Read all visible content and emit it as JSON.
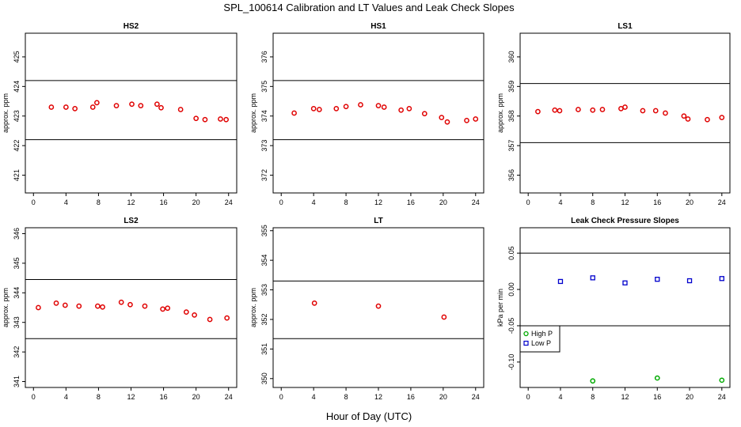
{
  "figure": {
    "title": "SPL_100614  Calibration and LT Values and Leak Check Slopes",
    "xlabel": "Hour of Day (UTC)"
  },
  "chart_data": [
    {
      "type": "scatter",
      "title": "HS2",
      "ylabel": "approx. ppm",
      "xlim": [
        -1,
        25
      ],
      "ylim": [
        420.4,
        425.8
      ],
      "xticks": [
        0,
        4,
        8,
        12,
        16,
        20,
        24
      ],
      "yticks": [
        421,
        422,
        423,
        424,
        425
      ],
      "hlines": [
        424.2,
        422.2
      ],
      "series": [
        {
          "color": "#e00000",
          "marker": "circle",
          "x": [
            2.2,
            4.0,
            5.1,
            7.3,
            7.8,
            10.2,
            12.1,
            13.2,
            15.2,
            15.7,
            18.1,
            20.0,
            21.1,
            23.0,
            23.7
          ],
          "y": [
            423.3,
            423.3,
            423.25,
            423.3,
            423.45,
            423.35,
            423.4,
            423.35,
            423.4,
            423.28,
            423.22,
            422.92,
            422.88,
            422.9,
            422.88
          ]
        }
      ]
    },
    {
      "type": "scatter",
      "title": "HS1",
      "ylabel": "approx. ppm",
      "xlim": [
        -1,
        25
      ],
      "ylim": [
        371.4,
        376.8
      ],
      "xticks": [
        0,
        4,
        8,
        12,
        16,
        20,
        24
      ],
      "yticks": [
        372,
        373,
        374,
        375,
        376
      ],
      "hlines": [
        375.2,
        373.2
      ],
      "series": [
        {
          "color": "#e00000",
          "marker": "circle",
          "x": [
            1.6,
            4.0,
            4.7,
            6.8,
            8.0,
            9.8,
            12.0,
            12.7,
            14.8,
            15.8,
            17.7,
            19.8,
            20.5,
            22.9,
            24.0
          ],
          "y": [
            374.1,
            374.25,
            374.22,
            374.25,
            374.32,
            374.38,
            374.35,
            374.3,
            374.2,
            374.25,
            374.08,
            373.95,
            373.8,
            373.85,
            373.9
          ]
        }
      ]
    },
    {
      "type": "scatter",
      "title": "LS1",
      "ylabel": "approx. ppm",
      "xlim": [
        -1,
        25
      ],
      "ylim": [
        355.4,
        360.8
      ],
      "xticks": [
        0,
        4,
        8,
        12,
        16,
        20,
        24
      ],
      "yticks": [
        356,
        357,
        358,
        359,
        360
      ],
      "hlines": [
        359.1,
        357.1
      ],
      "series": [
        {
          "color": "#e00000",
          "marker": "circle",
          "x": [
            1.2,
            3.3,
            3.9,
            6.2,
            8.0,
            9.2,
            11.5,
            12.0,
            14.2,
            15.8,
            17.0,
            19.3,
            19.8,
            22.2,
            24.0
          ],
          "y": [
            358.15,
            358.2,
            358.18,
            358.22,
            358.2,
            358.22,
            358.25,
            358.3,
            358.18,
            358.18,
            358.1,
            358.0,
            357.9,
            357.88,
            357.95
          ]
        }
      ]
    },
    {
      "type": "scatter",
      "title": "LS2",
      "ylabel": "approx. ppm",
      "xlim": [
        -1,
        25
      ],
      "ylim": [
        340.8,
        346.2
      ],
      "xticks": [
        0,
        4,
        8,
        12,
        16,
        20,
        24
      ],
      "yticks": [
        341,
        342,
        343,
        344,
        345,
        346
      ],
      "hlines": [
        344.45,
        342.45
      ],
      "series": [
        {
          "color": "#e00000",
          "marker": "circle",
          "x": [
            0.6,
            2.8,
            3.9,
            5.6,
            7.9,
            8.5,
            10.8,
            11.9,
            13.7,
            15.9,
            16.5,
            18.8,
            19.8,
            21.7,
            23.8
          ],
          "y": [
            343.5,
            343.65,
            343.58,
            343.55,
            343.55,
            343.52,
            343.68,
            343.6,
            343.55,
            343.45,
            343.48,
            343.35,
            343.25,
            343.1,
            343.15
          ]
        }
      ]
    },
    {
      "type": "scatter",
      "title": "LT",
      "ylabel": "approx. ppm",
      "xlim": [
        -1,
        25
      ],
      "ylim": [
        349.7,
        355.1
      ],
      "xticks": [
        0,
        4,
        8,
        12,
        16,
        20,
        24
      ],
      "yticks": [
        350,
        351,
        352,
        353,
        354,
        355
      ],
      "hlines": [
        353.3,
        351.35
      ],
      "series": [
        {
          "color": "#e00000",
          "marker": "circle",
          "x": [
            4.1,
            12.0,
            20.1
          ],
          "y": [
            352.55,
            352.45,
            352.08
          ]
        }
      ]
    },
    {
      "type": "scatter",
      "title": "Leak Check Pressure Slopes",
      "ylabel": "kPa per min",
      "xlim": [
        -1,
        25
      ],
      "ylim": [
        -0.135,
        0.085
      ],
      "xticks": [
        0,
        4,
        8,
        12,
        16,
        20,
        24
      ],
      "yticks": [
        -0.1,
        -0.05,
        0.0,
        0.05
      ],
      "ytick_labels": [
        "-0.10",
        "-0.05",
        "0.00",
        "0.05"
      ],
      "hlines": [
        0.05,
        -0.05
      ],
      "legend": {
        "placement": "left",
        "entries": [
          "High P",
          "Low P"
        ]
      },
      "series": [
        {
          "name": "High P",
          "color": "#00aa00",
          "marker": "circle",
          "x": [
            8.0,
            16.0,
            24.0
          ],
          "y": [
            -0.126,
            -0.122,
            -0.125
          ]
        },
        {
          "name": "Low P",
          "color": "#0000cc",
          "marker": "square",
          "x": [
            4.0,
            8.0,
            12.0,
            16.0,
            20.0,
            24.0
          ],
          "y": [
            0.011,
            0.016,
            0.009,
            0.014,
            0.012,
            0.015
          ]
        }
      ]
    }
  ]
}
